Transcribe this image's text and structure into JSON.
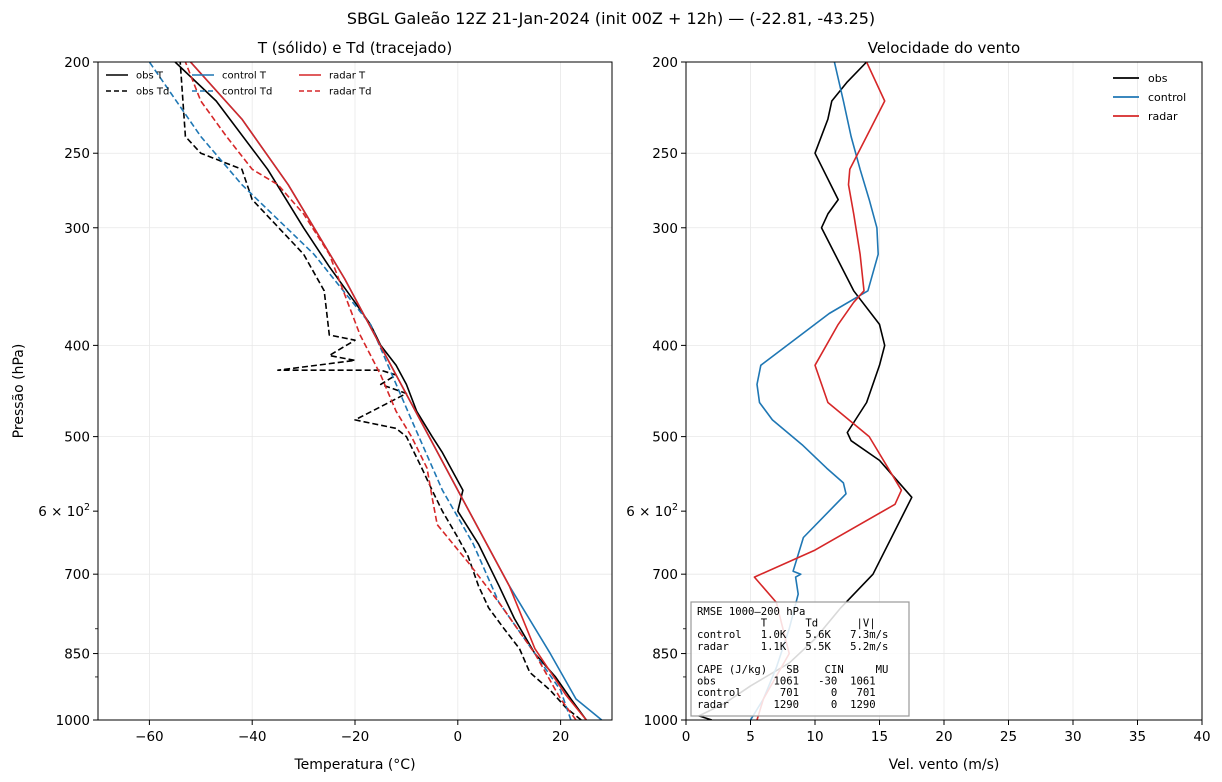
{
  "figure": {
    "suptitle": "SBGL Galeão 12Z 21-Jan-2024  (init 00Z + 12h)  —  (-22.81, -43.25)"
  },
  "colors": {
    "obs": "#000000",
    "control": "#1f77b4",
    "radar": "#d62728"
  },
  "chart_data": [
    {
      "type": "line",
      "title": "T (sólido) e Td (tracejado)",
      "xlabel": "Temperatura (°C)",
      "ylabel": "Pressão (hPa)",
      "y_scale": "log",
      "y_inverted": true,
      "xlim": [
        -70,
        30
      ],
      "ylim": [
        1000,
        200
      ],
      "x_ticks": [
        -60,
        -40,
        -20,
        0,
        20
      ],
      "x_tick_labels": [
        "−60",
        "−40",
        "−20",
        "0",
        "20"
      ],
      "y_ticks": [
        1000,
        850,
        700,
        500,
        400,
        300,
        250,
        200
      ],
      "y_tick_label_values": [
        1000,
        850,
        700,
        600,
        500,
        400,
        300,
        250,
        200
      ],
      "y_tick_labels": [
        "1000",
        "850",
        "700",
        "6 × 10²",
        "500",
        "400",
        "300",
        "250",
        "200"
      ],
      "grid": true,
      "legend_position": "top-left",
      "legend_columns": 3,
      "series": [
        {
          "name": "obs T",
          "color_key": "obs",
          "dash": "solid",
          "x": [
            25,
            22,
            19,
            15,
            11,
            8,
            4,
            0,
            1,
            -3,
            -5,
            -8,
            -10,
            -12,
            -15,
            -17,
            -20,
            -25,
            -30,
            -37,
            -47,
            -55
          ],
          "y": [
            1000,
            950,
            900,
            850,
            780,
            720,
            650,
            600,
            570,
            520,
            500,
            470,
            440,
            420,
            400,
            380,
            360,
            330,
            300,
            260,
            220,
            200
          ]
        },
        {
          "name": "obs Td",
          "color_key": "obs",
          "dash": "dashed",
          "x": [
            24,
            21,
            18,
            14,
            12,
            9,
            6,
            4,
            2,
            0,
            -3,
            -5,
            -7,
            -10,
            -12,
            -20,
            -10,
            -15,
            -12,
            -15,
            -35,
            -20,
            -25,
            -20,
            -25,
            -26,
            -30,
            -40,
            -42,
            -50,
            -53,
            -54
          ],
          "y": [
            1000,
            970,
            930,
            890,
            840,
            800,
            760,
            720,
            670,
            640,
            600,
            570,
            540,
            500,
            490,
            480,
            450,
            440,
            430,
            425,
            425,
            415,
            410,
            395,
            390,
            350,
            320,
            280,
            260,
            250,
            240,
            200
          ]
        },
        {
          "name": "control T",
          "color_key": "control",
          "dash": "solid",
          "x": [
            28,
            23,
            18,
            10,
            0,
            -12,
            -22,
            -33,
            -42,
            -52
          ],
          "y": [
            1000,
            950,
            850,
            720,
            570,
            430,
            340,
            270,
            230,
            200
          ]
        },
        {
          "name": "control Td",
          "color_key": "control",
          "dash": "dashed",
          "x": [
            22,
            20,
            15,
            8,
            3,
            -3,
            -9,
            -17,
            -28,
            -42,
            -50,
            -60
          ],
          "y": [
            1000,
            930,
            850,
            750,
            650,
            570,
            480,
            380,
            320,
            270,
            240,
            200
          ]
        },
        {
          "name": "radar T",
          "color_key": "radar",
          "dash": "solid",
          "x": [
            25,
            21,
            15,
            10,
            0,
            -12,
            -22,
            -33,
            -42,
            -52
          ],
          "y": [
            1000,
            940,
            840,
            720,
            570,
            430,
            340,
            270,
            230,
            200
          ]
        },
        {
          "name": "radar Td",
          "color_key": "radar",
          "dash": "dashed",
          "x": [
            23,
            20,
            15,
            8,
            2,
            -4,
            -5,
            -6,
            -9,
            -12,
            -15,
            -19,
            -25,
            -30,
            -35,
            -40,
            -45,
            -50,
            -53
          ],
          "y": [
            1000,
            950,
            850,
            750,
            680,
            620,
            580,
            540,
            500,
            470,
            430,
            390,
            320,
            290,
            270,
            260,
            240,
            220,
            200
          ]
        }
      ]
    },
    {
      "type": "line",
      "title": "Velocidade do vento",
      "xlabel": "Vel. vento (m/s)",
      "y_scale": "log",
      "y_inverted": true,
      "xlim": [
        0,
        40
      ],
      "ylim": [
        1000,
        200
      ],
      "x_ticks": [
        0,
        5,
        10,
        15,
        20,
        25,
        30,
        35,
        40
      ],
      "x_tick_labels": [
        "0",
        "5",
        "10",
        "15",
        "20",
        "25",
        "30",
        "35",
        "40"
      ],
      "y_ticks": [
        1000,
        850,
        700,
        500,
        400,
        300,
        250,
        200
      ],
      "y_tick_label_values": [
        1000,
        850,
        700,
        600,
        500,
        400,
        300,
        250,
        200
      ],
      "y_tick_labels": [
        "1000",
        "850",
        "700",
        "6 × 10²",
        "500",
        "400",
        "300",
        "250",
        "200"
      ],
      "grid": true,
      "legend_position": "top-right",
      "series": [
        {
          "name": "obs",
          "color_key": "obs",
          "x": [
            2,
            1,
            3,
            5,
            8,
            10,
            12,
            14.5,
            17.5,
            15,
            12.8,
            12.5,
            14,
            15,
            15.4,
            15,
            13,
            10.5,
            11,
            11.8,
            10,
            11,
            11.3,
            12.5,
            14
          ],
          "y": [
            1000,
            990,
            960,
            920,
            870,
            820,
            760,
            700,
            580,
            530,
            505,
            495,
            460,
            420,
            400,
            380,
            350,
            300,
            290,
            280,
            250,
            230,
            220,
            210,
            200
          ]
        },
        {
          "name": "control",
          "color_key": "control",
          "x": [
            5,
            6,
            7,
            8,
            8.7,
            8.5,
            8.9,
            8.3,
            9.1,
            12.4,
            12.2,
            10.9,
            9,
            6.7,
            5.7,
            5.5,
            5.8,
            11.1,
            14.1,
            14.9,
            14.8,
            14.2,
            13.5,
            12.8,
            12.2,
            11.5
          ],
          "y": [
            1000,
            950,
            880,
            800,
            735,
            705,
            700,
            695,
            640,
            575,
            560,
            540,
            510,
            480,
            460,
            440,
            420,
            370,
            350,
            320,
            300,
            280,
            260,
            240,
            220,
            200
          ]
        },
        {
          "name": "radar",
          "color_key": "radar",
          "x": [
            5.5,
            6,
            8,
            7,
            5.3,
            10,
            16.2,
            16.7,
            14.2,
            11,
            10,
            11.8,
            13,
            13.8,
            13.5,
            13,
            12.6,
            12.7,
            14,
            15.4,
            14
          ],
          "y": [
            1000,
            950,
            850,
            750,
            705,
            660,
            590,
            570,
            500,
            460,
            420,
            380,
            360,
            350,
            320,
            290,
            270,
            260,
            240,
            220,
            200
          ]
        }
      ],
      "rmse_box": {
        "lines": [
          "RMSE 1000–200 hPa",
          "          T      Td      |V|",
          "control   1.0K   5.6K   7.3m/s",
          "radar     1.1K   5.5K   5.2m/s",
          "",
          "CAPE (J/kg)   SB    CIN     MU",
          "obs         1061   -30  1061",
          "control      701     0   701",
          "radar       1290     0  1290"
        ]
      }
    }
  ]
}
